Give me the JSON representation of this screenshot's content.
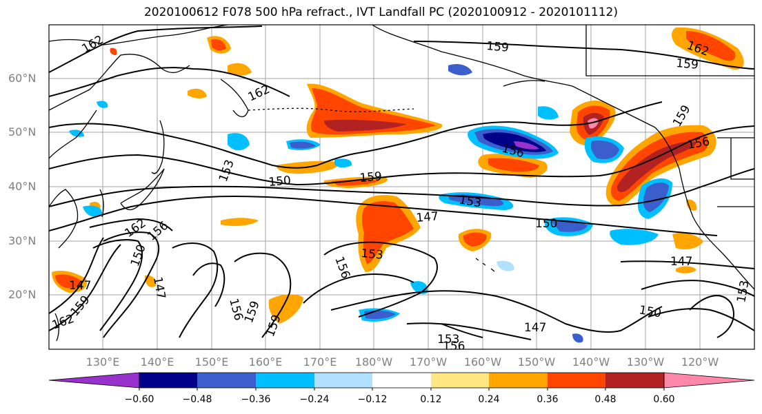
{
  "title": "2020100612 F078 500 hPa refract., IVT Landfall PC (2020100912 - 2020101112)",
  "lat_labels": [
    "60°N",
    "50°N",
    "40°N",
    "30°N",
    "20°N"
  ],
  "lon_labels": [
    "130°E",
    "140°E",
    "150°E",
    "160°E",
    "170°E",
    "180°W",
    "170°W",
    "160°W",
    "150°W",
    "140°W",
    "130°W",
    "120°W"
  ],
  "contour_labels": [
    "162",
    "159",
    "162",
    "159",
    "162",
    "159",
    "156",
    "153",
    "150",
    "159",
    "156",
    "153",
    "147",
    "150",
    "147",
    "153",
    "156",
    "162",
    "156",
    "150",
    "147",
    "147",
    "159",
    "156",
    "159",
    "147",
    "150",
    "153",
    "156",
    "153",
    "162",
    "159"
  ],
  "colorbar": {
    "ticks": [
      "−0.60",
      "−0.48",
      "−0.36",
      "−0.24",
      "−0.12",
      "0.12",
      "0.24",
      "0.36",
      "0.48",
      "0.60"
    ],
    "colors": [
      "#9932cc",
      "#00008b",
      "#3a5fcd",
      "#00bfff",
      "#b0e0ff",
      "#ffffff",
      "#ffe680",
      "#ffa500",
      "#ff4500",
      "#b22222",
      "#ff88aa"
    ]
  },
  "map_colors": {
    "land_outline": "#000000",
    "contour": "#000000",
    "grid": "#a0a0a0"
  }
}
